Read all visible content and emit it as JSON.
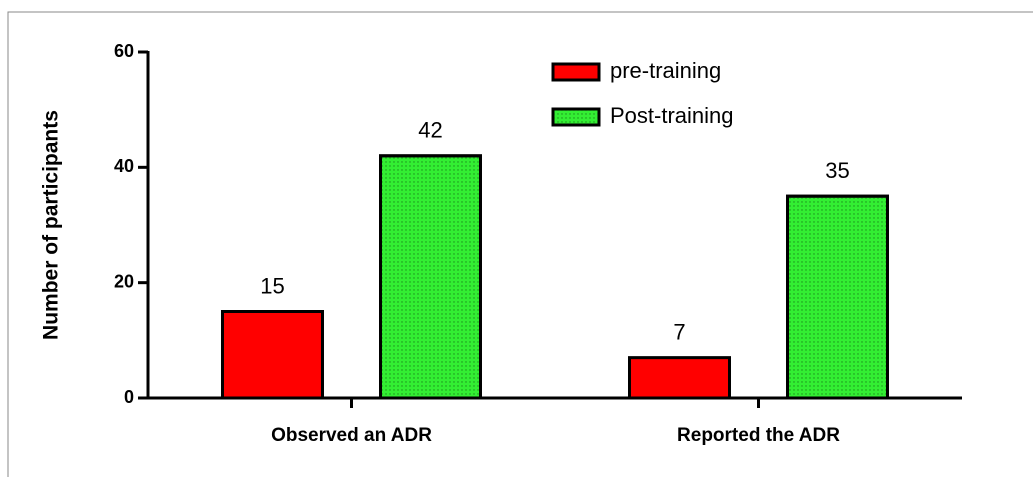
{
  "chart_data": {
    "type": "bar",
    "y_label": "Number of participants",
    "categories": [
      "Observed an ADR",
      "Reported the ADR"
    ],
    "series": [
      {
        "name": "pre-training",
        "color": "#ff0000",
        "values": [
          15,
          7
        ]
      },
      {
        "name": "Post-training",
        "color": "#33ee33",
        "values": [
          42,
          35
        ]
      }
    ],
    "ylim": [
      0,
      60
    ],
    "yticks": [
      0,
      20,
      40,
      60
    ]
  }
}
